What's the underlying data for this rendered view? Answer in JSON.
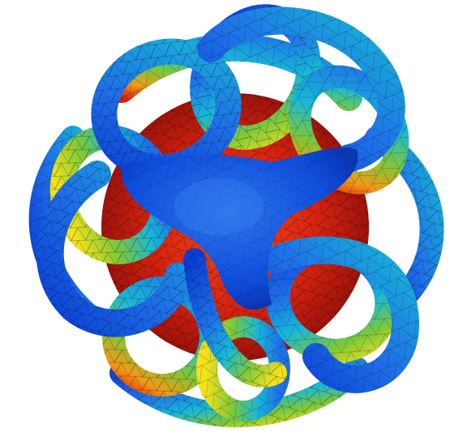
{
  "figure": {
    "description_hidden": "",
    "colormap": {
      "deep_blue": "#0a3fd6",
      "blue": "#1e6fe8",
      "cyan": "#18b8d8",
      "teal": "#20c6a0",
      "green": "#7cc83a",
      "yellow": "#f2e11d",
      "orange": "#f29a16",
      "red": "#d9230f",
      "dark_red": "#a8120b"
    },
    "mesh_line_color": "#1a1a1a",
    "background": "#ffffff"
  }
}
